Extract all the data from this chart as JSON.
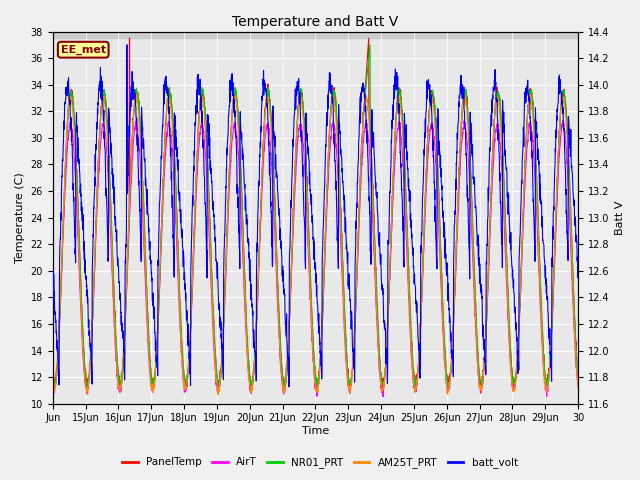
{
  "title": "Temperature and Batt V",
  "xlabel": "Time",
  "ylabel_left": "Temperature (C)",
  "ylabel_right": "Batt V",
  "annotation": "EE_met",
  "ylim_left": [
    10,
    38
  ],
  "ylim_right": [
    11.6,
    14.4
  ],
  "yticks_left": [
    10,
    12,
    14,
    16,
    18,
    20,
    22,
    24,
    26,
    28,
    30,
    32,
    34,
    36,
    38
  ],
  "yticks_right": [
    11.6,
    11.8,
    12.0,
    12.2,
    12.4,
    12.6,
    12.8,
    13.0,
    13.2,
    13.4,
    13.6,
    13.8,
    14.0,
    14.2,
    14.4
  ],
  "xtick_labels": [
    "Jun",
    "15Jun",
    "16Jun",
    "17Jun",
    "18Jun",
    "19Jun",
    "20Jun",
    "21Jun",
    "22Jun",
    "23Jun",
    "24Jun",
    "25Jun",
    "26Jun",
    "27Jun",
    "28Jun",
    "29Jun",
    "30"
  ],
  "colors": {
    "PanelTemp": "#ff0000",
    "AirT": "#ff00ff",
    "NR01_PRT": "#00cc00",
    "AM25T_PRT": "#ff8800",
    "batt_volt": "#0000ff"
  },
  "legend_labels": [
    "PanelTemp",
    "AirT",
    "NR01_PRT",
    "AM25T_PRT",
    "batt_volt"
  ],
  "background_plot": "#e8e8e8",
  "background_fig": "#f0f0f0",
  "grid_color": "#ffffff",
  "annotation_bg": "#ffff99",
  "annotation_border": "#880000",
  "annotation_text_color": "#880000",
  "n_days": 16,
  "points_per_day": 144
}
